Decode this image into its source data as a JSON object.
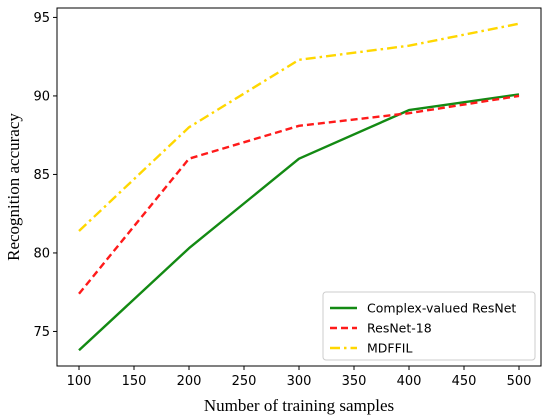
{
  "chart_data": {
    "type": "line",
    "title": "",
    "xlabel": "Number of training samples",
    "ylabel": "Recognition accuracy",
    "x": [
      100,
      200,
      300,
      400,
      500
    ],
    "xticks": [
      100,
      150,
      200,
      250,
      300,
      350,
      400,
      450,
      500
    ],
    "yticks": [
      75,
      80,
      85,
      90,
      95
    ],
    "xlim": [
      80,
      520
    ],
    "ylim": [
      72.8,
      95.6
    ],
    "grid": false,
    "legend_position": "lower-right",
    "series": [
      {
        "name": "Complex-valued ResNet",
        "values": [
          73.8,
          80.3,
          86.0,
          89.1,
          90.1
        ],
        "color": "#138a13",
        "style": "solid"
      },
      {
        "name": "ResNet-18",
        "values": [
          77.4,
          86.0,
          88.1,
          88.9,
          90.0
        ],
        "color": "#ff1a1a",
        "style": "dashed"
      },
      {
        "name": "MDFFIL",
        "values": [
          81.4,
          88.0,
          92.3,
          93.2,
          94.6
        ],
        "color": "#ffd700",
        "style": "dashdot"
      }
    ]
  }
}
